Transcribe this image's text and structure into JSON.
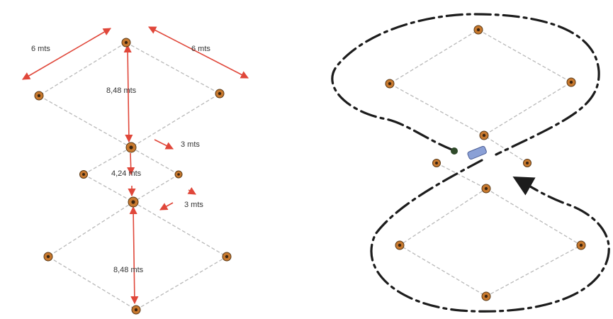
{
  "labels": {
    "side_top_left": "6 mts",
    "side_top_right": "6 mts",
    "diag_top": "8,48 mts",
    "gap_upper": "3 mts",
    "center_dist": "4,24 mts",
    "gap_lower": "3 mts",
    "diag_bottom": "8,48 mts"
  },
  "colors": {
    "dimension": "#e0473a",
    "post": "#c8792e",
    "guide": "#b9b9b9",
    "path": "#1c1c1c",
    "marker": "#8aa0d6"
  },
  "icons": {
    "post": "post-marker-icon",
    "arrow": "arrowhead-icon"
  }
}
